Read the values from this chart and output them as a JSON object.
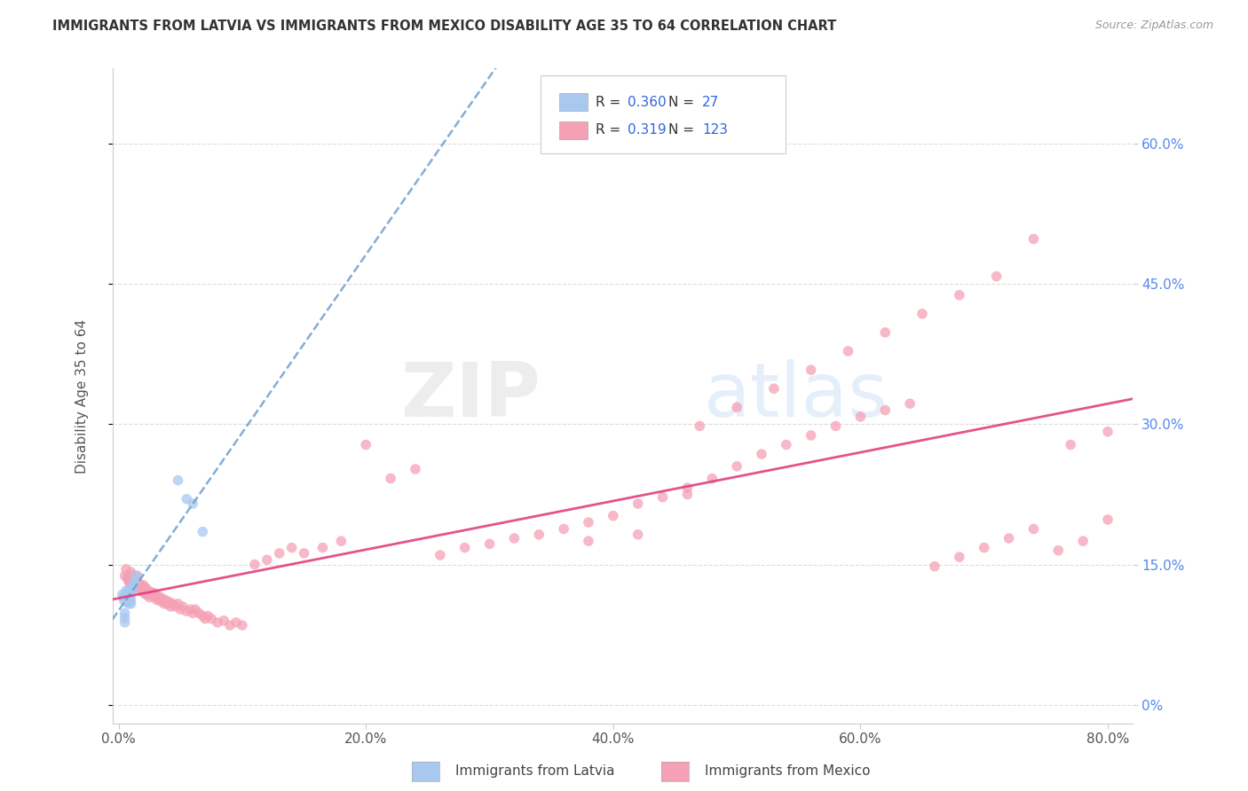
{
  "title": "IMMIGRANTS FROM LATVIA VS IMMIGRANTS FROM MEXICO DISABILITY AGE 35 TO 64 CORRELATION CHART",
  "source": "Source: ZipAtlas.com",
  "ylabel": "Disability Age 35 to 64",
  "xlabel_ticks": [
    "0.0%",
    "20.0%",
    "40.0%",
    "60.0%",
    "80.0%"
  ],
  "xlabel_vals": [
    0.0,
    0.2,
    0.4,
    0.6,
    0.8
  ],
  "ylabel_ticks_right": [
    "60.0%",
    "45.0%",
    "30.0%",
    "15.0%",
    "0%"
  ],
  "ylabel_vals": [
    0.6,
    0.45,
    0.3,
    0.15,
    0.0
  ],
  "xlim": [
    -0.005,
    0.82
  ],
  "ylim": [
    -0.02,
    0.68
  ],
  "latvia_R": 0.36,
  "latvia_N": 27,
  "mexico_R": 0.319,
  "mexico_N": 123,
  "latvia_color": "#A8C8F0",
  "mexico_color": "#F5A0B5",
  "latvia_line_color": "#6699CC",
  "mexico_line_color": "#E04080",
  "background_color": "#FFFFFF",
  "grid_color": "#DDDDDD",
  "watermark_zip": "ZIP",
  "watermark_atlas": "atlas",
  "legend_label_latvia": "Immigrants from Latvia",
  "legend_label_mexico": "Immigrants from Mexico",
  "latvia_x": [
    0.003,
    0.004,
    0.004,
    0.005,
    0.005,
    0.005,
    0.006,
    0.006,
    0.006,
    0.007,
    0.007,
    0.008,
    0.008,
    0.008,
    0.009,
    0.009,
    0.01,
    0.01,
    0.01,
    0.011,
    0.012,
    0.013,
    0.014,
    0.048,
    0.055,
    0.06,
    0.068
  ],
  "latvia_y": [
    0.118,
    0.112,
    0.115,
    0.088,
    0.093,
    0.098,
    0.118,
    0.122,
    0.115,
    0.11,
    0.115,
    0.118,
    0.122,
    0.108,
    0.112,
    0.118,
    0.112,
    0.118,
    0.108,
    0.125,
    0.128,
    0.132,
    0.138,
    0.24,
    0.22,
    0.215,
    0.185
  ],
  "mexico_x": [
    0.005,
    0.006,
    0.007,
    0.008,
    0.008,
    0.009,
    0.009,
    0.01,
    0.01,
    0.01,
    0.011,
    0.011,
    0.012,
    0.012,
    0.013,
    0.013,
    0.014,
    0.014,
    0.015,
    0.015,
    0.015,
    0.016,
    0.016,
    0.017,
    0.018,
    0.018,
    0.019,
    0.02,
    0.02,
    0.021,
    0.022,
    0.022,
    0.023,
    0.024,
    0.025,
    0.026,
    0.027,
    0.028,
    0.029,
    0.03,
    0.031,
    0.032,
    0.033,
    0.034,
    0.035,
    0.036,
    0.037,
    0.038,
    0.04,
    0.041,
    0.042,
    0.044,
    0.046,
    0.048,
    0.05,
    0.052,
    0.055,
    0.058,
    0.06,
    0.062,
    0.065,
    0.068,
    0.07,
    0.072,
    0.075,
    0.08,
    0.085,
    0.09,
    0.095,
    0.1,
    0.11,
    0.12,
    0.13,
    0.14,
    0.15,
    0.165,
    0.18,
    0.2,
    0.22,
    0.24,
    0.26,
    0.28,
    0.3,
    0.32,
    0.34,
    0.36,
    0.38,
    0.4,
    0.42,
    0.44,
    0.46,
    0.48,
    0.5,
    0.52,
    0.54,
    0.56,
    0.58,
    0.6,
    0.62,
    0.64,
    0.66,
    0.68,
    0.7,
    0.72,
    0.74,
    0.76,
    0.78,
    0.8,
    0.47,
    0.5,
    0.53,
    0.56,
    0.59,
    0.62,
    0.65,
    0.68,
    0.71,
    0.74,
    0.77,
    0.8,
    0.38,
    0.42,
    0.46
  ],
  "mexico_y": [
    0.138,
    0.145,
    0.135,
    0.132,
    0.138,
    0.13,
    0.138,
    0.13,
    0.135,
    0.142,
    0.13,
    0.138,
    0.128,
    0.135,
    0.128,
    0.132,
    0.125,
    0.13,
    0.128,
    0.132,
    0.138,
    0.125,
    0.13,
    0.128,
    0.122,
    0.128,
    0.125,
    0.12,
    0.128,
    0.122,
    0.118,
    0.125,
    0.118,
    0.122,
    0.115,
    0.12,
    0.118,
    0.12,
    0.115,
    0.118,
    0.112,
    0.115,
    0.112,
    0.115,
    0.11,
    0.112,
    0.108,
    0.112,
    0.108,
    0.11,
    0.105,
    0.108,
    0.105,
    0.108,
    0.102,
    0.105,
    0.1,
    0.102,
    0.098,
    0.102,
    0.098,
    0.095,
    0.092,
    0.095,
    0.092,
    0.088,
    0.09,
    0.085,
    0.088,
    0.085,
    0.15,
    0.155,
    0.162,
    0.168,
    0.162,
    0.168,
    0.175,
    0.278,
    0.242,
    0.252,
    0.16,
    0.168,
    0.172,
    0.178,
    0.182,
    0.188,
    0.195,
    0.202,
    0.215,
    0.222,
    0.232,
    0.242,
    0.255,
    0.268,
    0.278,
    0.288,
    0.298,
    0.308,
    0.315,
    0.322,
    0.148,
    0.158,
    0.168,
    0.178,
    0.188,
    0.165,
    0.175,
    0.198,
    0.298,
    0.318,
    0.338,
    0.358,
    0.378,
    0.398,
    0.418,
    0.438,
    0.458,
    0.498,
    0.278,
    0.292,
    0.175,
    0.182,
    0.225
  ]
}
